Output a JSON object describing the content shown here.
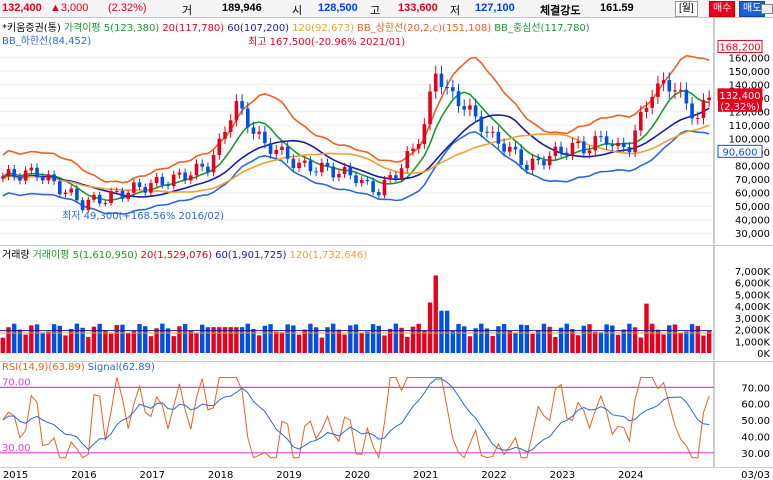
{
  "quote": {
    "price": "132,400",
    "change": "▲3,000",
    "change_pct": "(2.32%)",
    "volume_label": "거",
    "volume": "189,946",
    "open_label": "시",
    "open": "128,500",
    "high_label": "고",
    "high": "133,600",
    "low_label": "저",
    "low": "127,100",
    "strength_label": "체결강도",
    "strength": "161.59",
    "period_btn": "[월]",
    "buy_btn": "매수",
    "sell_btn": "매도"
  },
  "price_legend": {
    "stock": "*키움증권(통)",
    "ma_label": "가격이평 5(123,380)",
    "ma20": "20(117,780)",
    "ma60": "60(107,200)",
    "ma120": "120(92,673)",
    "bb_upper": "BB_상한선(20,2,c)(151,108)",
    "bb_mid": "BB_중심선(117,780)",
    "bb_lower": "BB_하한선(84,452)"
  },
  "annotations": {
    "high_note": "최고 167,500(-20.96% 2021/01)",
    "low_note": "최저 49,300(+168.56% 2016/02)"
  },
  "price_axis": {
    "ticks": [
      "160,000",
      "150,000",
      "140,000",
      "130,000",
      "120,000",
      "110,000",
      "100,000",
      "90,000",
      "80,000",
      "70,000",
      "60,000",
      "50,000",
      "40,000",
      "30,000"
    ],
    "badge_top": "168,200",
    "badge_price": "132,400",
    "badge_pct": "(2.32%)",
    "badge_low": "90,600"
  },
  "volume_legend": {
    "label": "거래량",
    "ma_label": "거래이평 5(1,610,950)",
    "ma20": "20(1,529,076)",
    "ma60": "60(1,901,725)",
    "ma120": "120(1,732,646)"
  },
  "volume_axis": {
    "ticks": [
      "7,000K",
      "6,000K",
      "5,000K",
      "4,000K",
      "3,000K",
      "2,000K",
      "1,000K",
      "0K"
    ]
  },
  "rsi_legend": {
    "rsi": "RSI(14,9)(63.89)",
    "signal": "Signal(62.89)"
  },
  "rsi_axis": {
    "ticks": [
      "70.00",
      "60.00",
      "50.00",
      "40.00",
      "30.00"
    ],
    "ob_label": "70.00",
    "os_label": "30.00"
  },
  "x_axis": {
    "labels": [
      "2015",
      "2016",
      "2017",
      "2018",
      "2019",
      "2020",
      "2021",
      "2022",
      "2023",
      "2024"
    ],
    "end_label": "03/03"
  },
  "colors": {
    "up": "#e8001c",
    "down": "#0050e6",
    "ma5": "#1a9a2a",
    "ma20": "#ff2a2a",
    "ma60": "#1a1aaa",
    "ma120": "#f0a030",
    "bb_upper": "#f06020",
    "bb_mid": "#1a9a2a",
    "bb_lower": "#2a6ad8"
  },
  "chart_data": [
    {
      "type": "candlestick",
      "title": "*키움증권(통)",
      "x": [
        "2015",
        "2016",
        "2017",
        "2018",
        "2019",
        "2020",
        "2021",
        "2022",
        "2023",
        "2024"
      ],
      "ylim": [
        30000,
        170000
      ],
      "series": [
        {
          "name": "가격이평 5",
          "values": [
            72000,
            58000,
            78000,
            118000,
            82000,
            70000,
            120000,
            95000,
            98000,
            123380
          ]
        },
        {
          "name": "BB_상한선",
          "values": [
            100000,
            72000,
            105000,
            155000,
            110000,
            100000,
            160000,
            130000,
            120000,
            151108
          ]
        },
        {
          "name": "BB_하한선",
          "values": [
            60000,
            48000,
            62000,
            82000,
            62000,
            52000,
            90000,
            72000,
            72000,
            84452
          ]
        }
      ],
      "high": 167500,
      "low": 49300
    },
    {
      "type": "bar",
      "title": "거래량",
      "x": [
        "2015",
        "2016",
        "2017",
        "2018",
        "2019",
        "2020",
        "2021",
        "2022",
        "2023",
        "2024"
      ],
      "ylim": [
        0,
        8000000
      ],
      "values": [
        1800000,
        1100000,
        1200000,
        2300000,
        1500000,
        2400000,
        6500000,
        1400000,
        1700000,
        1600000
      ]
    },
    {
      "type": "line",
      "title": "RSI(14,9)",
      "x": [
        "2015",
        "2016",
        "2017",
        "2018",
        "2019",
        "2020",
        "2021",
        "2022",
        "2023",
        "2024"
      ],
      "ylim": [
        25,
        80
      ],
      "series": [
        {
          "name": "RSI",
          "values": [
            55,
            38,
            62,
            66,
            30,
            48,
            75,
            30,
            55,
            63.89
          ]
        },
        {
          "name": "Signal",
          "values": [
            58,
            42,
            58,
            64,
            34,
            46,
            72,
            32,
            52,
            62.89
          ]
        }
      ]
    }
  ]
}
